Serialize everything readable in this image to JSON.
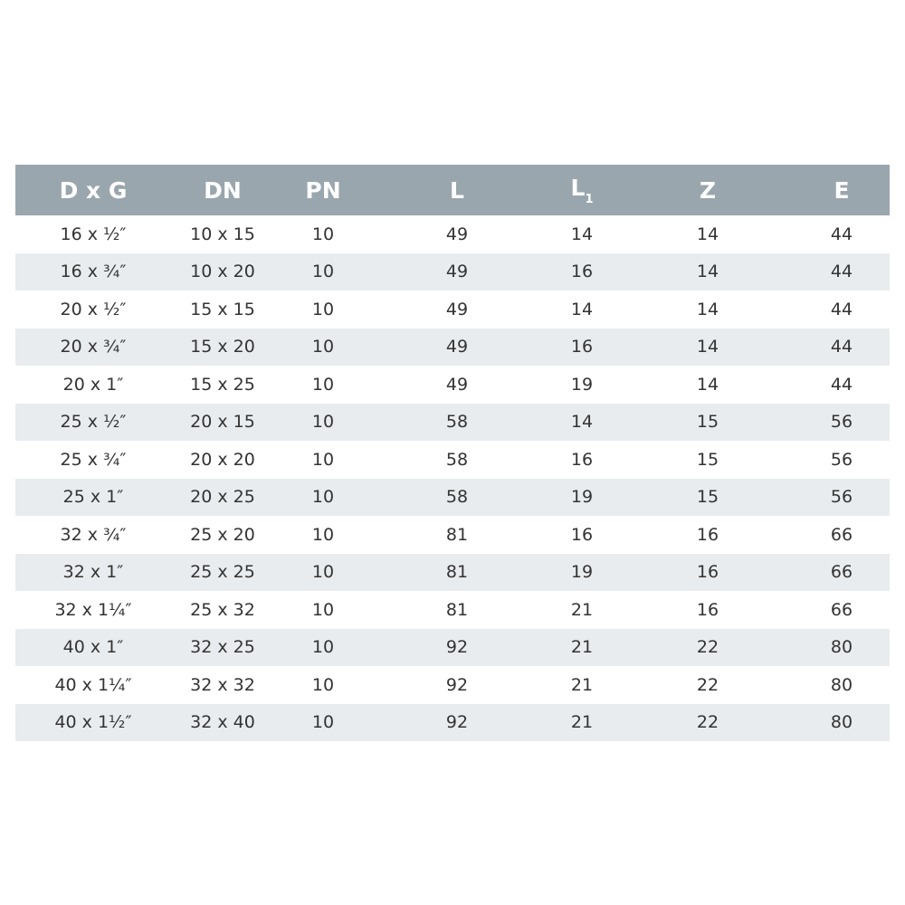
{
  "table": {
    "headers": [
      "D x G",
      "DN",
      "PN",
      "L",
      "L",
      "Z",
      "E"
    ],
    "header_subscript_L1": "1",
    "rows": [
      [
        "16 x ½″",
        "10 x 15",
        "10",
        "49",
        "14",
        "14",
        "44"
      ],
      [
        "16 x ¾″",
        "10 x 20",
        "10",
        "49",
        "16",
        "14",
        "44"
      ],
      [
        "20 x ½″",
        "15 x 15",
        "10",
        "49",
        "14",
        "14",
        "44"
      ],
      [
        "20 x ¾″",
        "15 x 20",
        "10",
        "49",
        "16",
        "14",
        "44"
      ],
      [
        "20 x 1″",
        "15 x 25",
        "10",
        "49",
        "19",
        "14",
        "44"
      ],
      [
        "25 x ½″",
        "20 x 15",
        "10",
        "58",
        "14",
        "15",
        "56"
      ],
      [
        "25 x ¾″",
        "20 x 20",
        "10",
        "58",
        "16",
        "15",
        "56"
      ],
      [
        "25 x 1″",
        "20 x 25",
        "10",
        "58",
        "19",
        "15",
        "56"
      ],
      [
        "32 x ¾″",
        "25 x 20",
        "10",
        "81",
        "16",
        "16",
        "66"
      ],
      [
        "32 x 1″",
        "25 x 25",
        "10",
        "81",
        "19",
        "16",
        "66"
      ],
      [
        "32 x 1¼″",
        "25 x 32",
        "10",
        "81",
        "21",
        "16",
        "66"
      ],
      [
        "40 x 1″",
        "32 x 25",
        "10",
        "92",
        "21",
        "22",
        "80"
      ],
      [
        "40 x 1¼″",
        "32 x 32",
        "10",
        "92",
        "21",
        "22",
        "80"
      ],
      [
        "40 x 1½″",
        "32 x 40",
        "10",
        "92",
        "21",
        "22",
        "80"
      ]
    ]
  },
  "colors": {
    "header_bg": "#9aa6ae",
    "stripe_bg": "#e9ecef",
    "text": "#333333"
  }
}
